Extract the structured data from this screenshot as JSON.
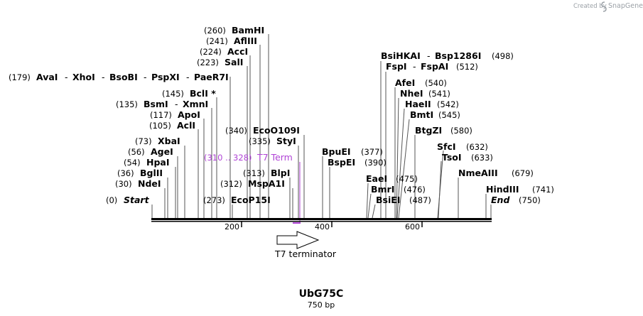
{
  "credit": {
    "prefix": "Created by",
    "brand": "SnapGene"
  },
  "sequence": {
    "name": "UbG75C",
    "length_label": "750 bp"
  },
  "axis": {
    "ticks": [
      "200",
      "400",
      "600"
    ]
  },
  "feature": {
    "name": "T7 terminator",
    "range_label": "(310 .. 328)",
    "short_name": "T7 Term"
  },
  "sites": [
    {
      "id": "bamhi",
      "pos": "(260)",
      "names": [
        "BamHI"
      ]
    },
    {
      "id": "afliii",
      "pos": "(241)",
      "names": [
        "AflIII"
      ]
    },
    {
      "id": "acci",
      "pos": "(224)",
      "names": [
        "AccI"
      ]
    },
    {
      "id": "sali",
      "pos": "(223)",
      "names": [
        "SalI"
      ]
    },
    {
      "id": "avai",
      "pos": "(179)",
      "names": [
        "AvaI",
        "XhoI",
        "BsoBI",
        "PspXI",
        "PaeR7I"
      ]
    },
    {
      "id": "bcli",
      "pos": "(145)",
      "names": [
        "BclI *"
      ]
    },
    {
      "id": "bsmi",
      "pos": "(135)",
      "names": [
        "BsmI",
        "XmnI"
      ]
    },
    {
      "id": "apoi",
      "pos": "(117)",
      "names": [
        "ApoI"
      ]
    },
    {
      "id": "acli",
      "pos": "(105)",
      "names": [
        "AclI"
      ]
    },
    {
      "id": "xbai",
      "pos": "(73)",
      "names": [
        "XbaI"
      ]
    },
    {
      "id": "agei",
      "pos": "(56)",
      "names": [
        "AgeI"
      ]
    },
    {
      "id": "hpai",
      "pos": "(54)",
      "names": [
        "HpaI"
      ]
    },
    {
      "id": "bglii",
      "pos": "(36)",
      "names": [
        "BglII"
      ]
    },
    {
      "id": "ndei",
      "pos": "(30)",
      "names": [
        "NdeI"
      ]
    },
    {
      "id": "start",
      "pos": "(0)",
      "names": [
        "Start"
      ]
    },
    {
      "id": "ecop15i",
      "pos": "(273)",
      "names": [
        "EcoP15I"
      ]
    },
    {
      "id": "ecoo109i",
      "pos": "(340)",
      "names": [
        "EcoO109I"
      ]
    },
    {
      "id": "styi",
      "pos": "(335)",
      "names": [
        "StyI"
      ]
    },
    {
      "id": "blpi",
      "pos": "(313)",
      "names": [
        "BlpI"
      ]
    },
    {
      "id": "mspa1i",
      "pos": "(312)",
      "names": [
        "MspA1I"
      ]
    },
    {
      "id": "bpuei",
      "pos": "(377)",
      "names": [
        "BpuEI"
      ]
    },
    {
      "id": "bspei",
      "pos": "(390)",
      "names": [
        "BspEI"
      ]
    },
    {
      "id": "bsihkai",
      "pos": "(498)",
      "names": [
        "BsiHKAI",
        "Bsp1286I"
      ]
    },
    {
      "id": "fspi",
      "pos": "(512)",
      "names": [
        "FspI",
        "FspAI"
      ]
    },
    {
      "id": "afei",
      "pos": "(540)",
      "names": [
        "AfeI"
      ]
    },
    {
      "id": "nhei",
      "pos": "(541)",
      "names": [
        "NheI"
      ]
    },
    {
      "id": "haeii",
      "pos": "(542)",
      "names": [
        "HaeII"
      ]
    },
    {
      "id": "bmti",
      "pos": "(545)",
      "names": [
        "BmtI"
      ]
    },
    {
      "id": "btgzi",
      "pos": "(580)",
      "names": [
        "BtgZI"
      ]
    },
    {
      "id": "sfci",
      "pos": "(632)",
      "names": [
        "SfcI"
      ]
    },
    {
      "id": "tsoi",
      "pos": "(633)",
      "names": [
        "TsoI"
      ]
    },
    {
      "id": "nmeaiii",
      "pos": "(679)",
      "names": [
        "NmeAIII"
      ]
    },
    {
      "id": "hindiii",
      "pos": "(741)",
      "names": [
        "HindIII"
      ]
    },
    {
      "id": "end",
      "pos": "(750)",
      "names": [
        "End"
      ]
    },
    {
      "id": "eaei",
      "pos": "(475)",
      "names": [
        "EaeI"
      ]
    },
    {
      "id": "bmri",
      "pos": "(476)",
      "names": [
        "BmrI"
      ]
    },
    {
      "id": "bsiei",
      "pos": "(487)",
      "names": [
        "BsiEI"
      ]
    }
  ]
}
